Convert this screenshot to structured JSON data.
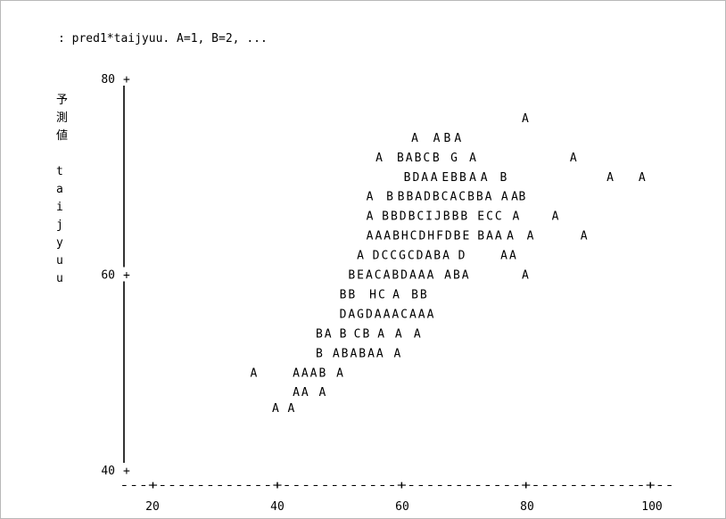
{
  "chart_data": {
    "type": "scatter",
    "title": ": pred1*taijyuu. A=1, B=2, ...",
    "ylabel": [
      "予",
      "測",
      "値",
      "",
      "t",
      "a",
      "i",
      "j",
      "y",
      "u",
      "u"
    ],
    "xlim": [
      20,
      100
    ],
    "ylim": [
      40,
      80
    ],
    "x_ticks": [
      "20",
      "40",
      "60",
      "80",
      "100"
    ],
    "y_ticks": [
      "80",
      "60",
      "40"
    ],
    "y_tick_marks": [
      "+",
      "+",
      "+"
    ],
    "x_rule": "---+------------+------------+------------+------------+--",
    "rows": [
      {
        "y": 76,
        "cells": [
          [
            79.7,
            "A"
          ]
        ]
      },
      {
        "y": 74,
        "cells": [
          [
            62.0,
            "A"
          ],
          [
            65.5,
            "A"
          ],
          [
            67.2,
            "B"
          ],
          [
            68.9,
            "A"
          ]
        ]
      },
      {
        "y": 72,
        "cells": [
          [
            56.3,
            "A"
          ],
          [
            59.7,
            "B"
          ],
          [
            61.1,
            "A"
          ],
          [
            62.5,
            "B"
          ],
          [
            63.9,
            "C"
          ],
          [
            65.4,
            "B"
          ],
          [
            68.3,
            "G"
          ],
          [
            71.3,
            "A"
          ],
          [
            87.4,
            "A"
          ]
        ]
      },
      {
        "y": 70,
        "cells": [
          [
            60.8,
            "B"
          ],
          [
            62.2,
            "D"
          ],
          [
            63.6,
            "A"
          ],
          [
            65.1,
            "A"
          ],
          [
            66.9,
            "E"
          ],
          [
            68.3,
            "B"
          ],
          [
            69.7,
            "B"
          ],
          [
            71.3,
            "A"
          ],
          [
            73.1,
            "A"
          ],
          [
            76.2,
            "B"
          ],
          [
            93.3,
            "A"
          ],
          [
            98.4,
            "A"
          ]
        ]
      },
      {
        "y": 68,
        "cells": [
          [
            54.8,
            "A"
          ],
          [
            58.0,
            "B"
          ],
          [
            59.8,
            "B"
          ],
          [
            61.2,
            "B"
          ],
          [
            62.6,
            "A"
          ],
          [
            64.0,
            "D"
          ],
          [
            65.4,
            "B"
          ],
          [
            66.8,
            "C"
          ],
          [
            68.2,
            "A"
          ],
          [
            69.6,
            "C"
          ],
          [
            71.0,
            "B"
          ],
          [
            72.4,
            "B"
          ],
          [
            73.8,
            "A"
          ],
          [
            76.4,
            "A"
          ],
          [
            78.0,
            "A"
          ],
          [
            79.2,
            "B"
          ]
        ]
      },
      {
        "y": 66,
        "cells": [
          [
            54.8,
            "A"
          ],
          [
            57.3,
            "B"
          ],
          [
            58.7,
            "B"
          ],
          [
            60.1,
            "D"
          ],
          [
            61.5,
            "B"
          ],
          [
            62.9,
            "C"
          ],
          [
            64.3,
            "I"
          ],
          [
            65.7,
            "J"
          ],
          [
            67.1,
            "B"
          ],
          [
            68.5,
            "B"
          ],
          [
            69.9,
            "B"
          ],
          [
            72.6,
            "E"
          ],
          [
            74.0,
            "C"
          ],
          [
            75.4,
            "C"
          ],
          [
            78.2,
            "A"
          ],
          [
            84.5,
            "A"
          ]
        ]
      },
      {
        "y": 64,
        "cells": [
          [
            54.8,
            "A"
          ],
          [
            56.2,
            "A"
          ],
          [
            57.6,
            "A"
          ],
          [
            59.0,
            "B"
          ],
          [
            60.4,
            "H"
          ],
          [
            61.8,
            "C"
          ],
          [
            63.2,
            "D"
          ],
          [
            64.6,
            "H"
          ],
          [
            66.0,
            "F"
          ],
          [
            67.4,
            "D"
          ],
          [
            68.8,
            "B"
          ],
          [
            70.2,
            "E"
          ],
          [
            72.6,
            "B"
          ],
          [
            74.0,
            "A"
          ],
          [
            75.4,
            "A"
          ],
          [
            77.3,
            "A"
          ],
          [
            80.5,
            "A"
          ],
          [
            89.1,
            "A"
          ]
        ]
      },
      {
        "y": 62,
        "cells": [
          [
            53.3,
            "A"
          ],
          [
            55.8,
            "D"
          ],
          [
            57.2,
            "C"
          ],
          [
            58.6,
            "C"
          ],
          [
            60.0,
            "G"
          ],
          [
            61.4,
            "C"
          ],
          [
            62.8,
            "D"
          ],
          [
            64.2,
            "A"
          ],
          [
            65.6,
            "B"
          ],
          [
            67.0,
            "A"
          ],
          [
            69.5,
            "D"
          ],
          [
            76.3,
            "A"
          ],
          [
            77.7,
            "A"
          ]
        ]
      },
      {
        "y": 60,
        "cells": [
          [
            51.9,
            "B"
          ],
          [
            53.3,
            "E"
          ],
          [
            54.7,
            "A"
          ],
          [
            56.1,
            "C"
          ],
          [
            57.5,
            "A"
          ],
          [
            58.9,
            "B"
          ],
          [
            60.3,
            "D"
          ],
          [
            61.7,
            "A"
          ],
          [
            63.1,
            "A"
          ],
          [
            64.5,
            "A"
          ],
          [
            67.3,
            "A"
          ],
          [
            68.7,
            "B"
          ],
          [
            70.1,
            "A"
          ],
          [
            79.7,
            "A"
          ]
        ]
      },
      {
        "y": 58,
        "cells": [
          [
            50.5,
            "B"
          ],
          [
            51.9,
            "B"
          ],
          [
            55.3,
            "H"
          ],
          [
            56.7,
            "C"
          ],
          [
            59.0,
            "A"
          ],
          [
            62.0,
            "B"
          ],
          [
            63.4,
            "B"
          ]
        ]
      },
      {
        "y": 56,
        "cells": [
          [
            50.5,
            "D"
          ],
          [
            51.9,
            "A"
          ],
          [
            53.3,
            "G"
          ],
          [
            54.7,
            "D"
          ],
          [
            56.1,
            "A"
          ],
          [
            57.5,
            "A"
          ],
          [
            58.9,
            "A"
          ],
          [
            60.3,
            "C"
          ],
          [
            61.7,
            "A"
          ],
          [
            63.1,
            "A"
          ],
          [
            64.5,
            "A"
          ]
        ]
      },
      {
        "y": 54,
        "cells": [
          [
            46.7,
            "B"
          ],
          [
            48.1,
            "A"
          ],
          [
            50.5,
            "B"
          ],
          [
            52.8,
            "C"
          ],
          [
            54.2,
            "B"
          ],
          [
            56.6,
            "A"
          ],
          [
            59.4,
            "A"
          ],
          [
            62.4,
            "A"
          ]
        ]
      },
      {
        "y": 52,
        "cells": [
          [
            46.7,
            "B"
          ],
          [
            49.4,
            "A"
          ],
          [
            50.8,
            "B"
          ],
          [
            52.2,
            "A"
          ],
          [
            53.6,
            "B"
          ],
          [
            55.0,
            "A"
          ],
          [
            56.4,
            "A"
          ],
          [
            59.2,
            "A"
          ]
        ]
      },
      {
        "y": 50,
        "cells": [
          [
            36.2,
            "A"
          ],
          [
            43.0,
            "A"
          ],
          [
            44.4,
            "A"
          ],
          [
            45.8,
            "A"
          ],
          [
            47.2,
            "B"
          ],
          [
            50.0,
            "A"
          ]
        ]
      },
      {
        "y": 48,
        "cells": [
          [
            43.0,
            "A"
          ],
          [
            44.4,
            "A"
          ],
          [
            47.2,
            "A"
          ]
        ]
      },
      {
        "y": 46.4,
        "cells": [
          [
            39.7,
            "A"
          ],
          [
            42.2,
            "A"
          ]
        ]
      }
    ]
  }
}
